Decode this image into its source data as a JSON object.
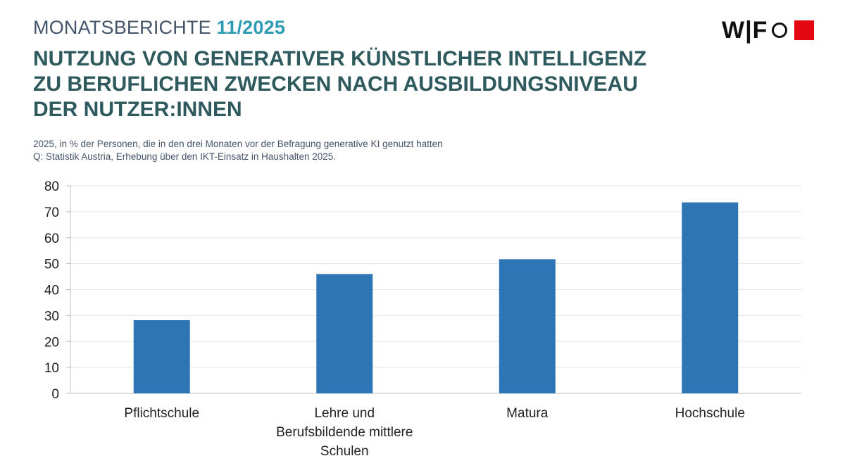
{
  "header": {
    "kicker": "MONATSBERICHTE",
    "issue": "11/2025",
    "title_lines": [
      "NUTZUNG VON GENERATIVER KÜNSTLICHER INTELLIGENZ",
      "ZU BERUFLICHEN ZWECKEN NACH AUSBILDUNGSNIVEAU",
      "DER NUTZER:INNEN"
    ],
    "subtitle": "2025, in % der Personen, die in den drei Monaten vor der Befragung generative KI genutzt hatten",
    "source": "Q: Statistik Austria, Erhebung über den IKT-Einsatz in Haushalten 2025."
  },
  "logo": {
    "text": "W|F",
    "accent_color": "#e30613"
  },
  "colors": {
    "bar": "#2e75b6",
    "grid": "#e6e6e6",
    "axis": "#bfbfbf"
  },
  "chart_data": {
    "type": "bar",
    "title": "NUTZUNG VON GENERATIVER KÜNSTLICHER INTELLIGENZ ZU BERUFLICHEN ZWECKEN NACH AUSBILDUNGSNIVEAU DER NUTZER:INNEN",
    "xlabel": "",
    "ylabel": "",
    "ylim": [
      0,
      80
    ],
    "yticks": [
      0,
      10,
      20,
      30,
      40,
      50,
      60,
      70,
      80
    ],
    "grid": true,
    "categories": [
      [
        "Pflichtschule"
      ],
      [
        "Lehre und",
        "Berufsbildende mittlere",
        "Schulen"
      ],
      [
        "Matura"
      ],
      [
        "Hochschule"
      ]
    ],
    "values": [
      28.2,
      46.0,
      51.7,
      73.6
    ]
  }
}
